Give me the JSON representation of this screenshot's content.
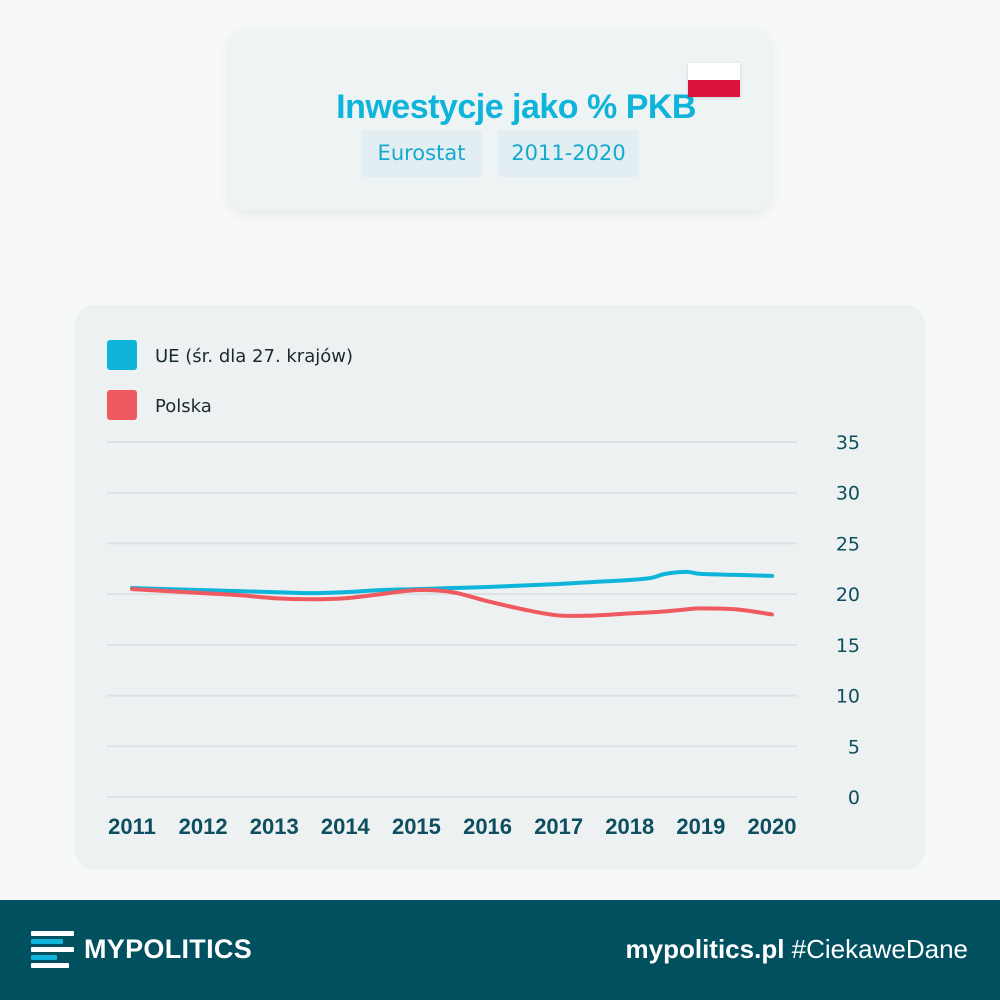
{
  "header": {
    "title": "Inwestycje jako % PKB",
    "source_tag": "Eurostat",
    "range_tag": "2011-2020",
    "flag_colors": [
      "#ffffff",
      "#dc143c"
    ]
  },
  "chart_data": {
    "type": "line",
    "x": [
      2011,
      2011.5,
      2012,
      2012.5,
      2013,
      2013.5,
      2014,
      2014.5,
      2015,
      2015.5,
      2016,
      2016.5,
      2017,
      2017.5,
      2018,
      2018.3,
      2018.5,
      2018.8,
      2019,
      2019.5,
      2020
    ],
    "categories": [
      "2011",
      "2012",
      "2013",
      "2014",
      "2015",
      "2016",
      "2017",
      "2018",
      "2019",
      "2020"
    ],
    "series": [
      {
        "name": "UE (śr. dla 27. krajów)",
        "color": "#0fb4da",
        "values": [
          20.6,
          20.5,
          20.4,
          20.3,
          20.2,
          20.1,
          20.2,
          20.4,
          20.5,
          20.6,
          20.7,
          20.85,
          21.0,
          21.2,
          21.4,
          21.6,
          22.0,
          22.2,
          22.0,
          21.9,
          21.8
        ]
      },
      {
        "name": "Polska",
        "color": "#ee5a5f",
        "values": [
          20.5,
          20.3,
          20.1,
          19.9,
          19.6,
          19.5,
          19.6,
          20.0,
          20.4,
          20.2,
          19.3,
          18.5,
          17.9,
          17.9,
          18.1,
          18.2,
          18.3,
          18.5,
          18.6,
          18.5,
          18.0
        ]
      }
    ],
    "yticks": [
      0,
      5,
      10,
      15,
      20,
      25,
      30,
      35
    ],
    "ylim": [
      0,
      35
    ],
    "xlim": [
      2011,
      2020
    ],
    "grid": true,
    "y_axis_side": "right",
    "legend_position": "top-left"
  },
  "footer": {
    "brand": "MYPOLITICS",
    "site": "mypolitics.pl",
    "hashtag": "#CiekaweDane",
    "background": "#01505f"
  }
}
